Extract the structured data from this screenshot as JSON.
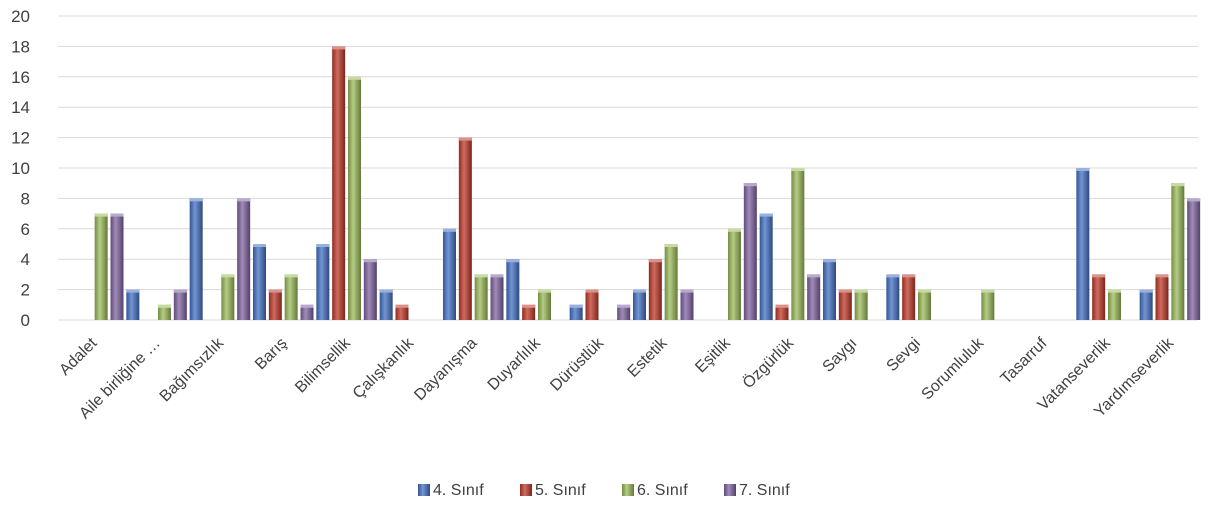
{
  "chart_data": {
    "type": "bar",
    "categories": [
      "Adalet",
      "Aile birliğine …",
      "Bağımsızlık",
      "Barış",
      "Bilimsellik",
      "Çalışkanlık",
      "Dayanışma",
      "Duyarlılık",
      "Dürüstlük",
      "Estetik",
      "Eşitlik",
      "Özgürlük",
      "Saygı",
      "Sevgi",
      "Sorumluluk",
      "Tasarruf",
      "Vatanseverlik",
      "Yardımseverlik"
    ],
    "series": [
      {
        "name": "4. Sınıf",
        "color": "#4472C4",
        "values": [
          0,
          2,
          8,
          5,
          5,
          2,
          6,
          4,
          1,
          2,
          0,
          7,
          4,
          3,
          0,
          0,
          10,
          2
        ]
      },
      {
        "name": "5. Sınıf",
        "color": "#C0392B",
        "values": [
          0,
          0,
          0,
          2,
          18,
          1,
          12,
          1,
          2,
          4,
          0,
          1,
          2,
          3,
          0,
          0,
          3,
          3
        ]
      },
      {
        "name": "6. Sınıf",
        "color": "#9BBB59",
        "values": [
          7,
          1,
          3,
          3,
          16,
          0,
          3,
          2,
          0,
          5,
          6,
          10,
          2,
          2,
          2,
          0,
          2,
          9
        ]
      },
      {
        "name": "7. Sınıf",
        "color": "#8064A2",
        "values": [
          7,
          2,
          8,
          1,
          4,
          0,
          3,
          0,
          1,
          2,
          9,
          3,
          0,
          0,
          0,
          0,
          0,
          8
        ]
      }
    ],
    "ylim": [
      0,
      20
    ],
    "yticks": [
      0,
      2,
      4,
      6,
      8,
      10,
      12,
      14,
      16,
      18,
      20
    ],
    "grid": true,
    "legend_position": "bottom"
  }
}
